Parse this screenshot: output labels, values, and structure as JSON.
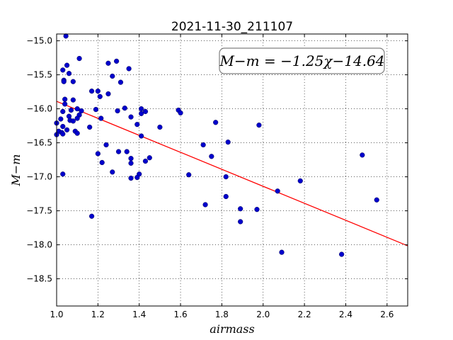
{
  "chart_data": {
    "type": "scatter",
    "title": "2021-11-30_211107",
    "xlabel": "airmass",
    "ylabel": "M−m",
    "xlim": [
      1.0,
      2.7
    ],
    "ylim": [
      -18.9,
      -14.9
    ],
    "y_inverted": true,
    "grid": true,
    "xticks": [
      "1.0",
      "1.2",
      "1.4",
      "1.6",
      "1.8",
      "2.0",
      "2.2",
      "2.4",
      "2.6"
    ],
    "yticks": [
      "−15.0",
      "−15.5",
      "−16.0",
      "−16.5",
      "−17.0",
      "−17.5",
      "−18.0",
      "−18.5"
    ],
    "annotation": "M−m = −1.25χ−14.64",
    "fit": {
      "slope": -1.25,
      "intercept": -14.64,
      "color": "#ff0000"
    },
    "point_color": "#0000cc",
    "points": [
      [
        1.045,
        -14.93
      ],
      [
        1.11,
        -15.26
      ],
      [
        1.29,
        -15.3
      ],
      [
        1.25,
        -15.33
      ],
      [
        1.05,
        -15.36
      ],
      [
        1.35,
        -15.41
      ],
      [
        1.03,
        -15.43
      ],
      [
        1.06,
        -15.48
      ],
      [
        1.27,
        -15.52
      ],
      [
        1.035,
        -15.58
      ],
      [
        1.08,
        -15.6
      ],
      [
        1.31,
        -15.61
      ],
      [
        1.035,
        -15.6
      ],
      [
        1.17,
        -15.74
      ],
      [
        1.2,
        -15.74
      ],
      [
        1.25,
        -15.78
      ],
      [
        1.21,
        -15.82
      ],
      [
        1.04,
        -15.86
      ],
      [
        1.08,
        -15.87
      ],
      [
        1.04,
        -15.93
      ],
      [
        1.33,
        -15.99
      ],
      [
        1.19,
        -16.01
      ],
      [
        1.1,
        -16.0
      ],
      [
        1.41,
        -16.0
      ],
      [
        1.07,
        -16.02
      ],
      [
        1.12,
        -16.03
      ],
      [
        1.03,
        -16.04
      ],
      [
        1.43,
        -16.04
      ],
      [
        1.295,
        -16.03
      ],
      [
        1.59,
        -16.02
      ],
      [
        1.6,
        -16.06
      ],
      [
        1.41,
        -16.07
      ],
      [
        1.11,
        -16.09
      ],
      [
        1.06,
        -16.11
      ],
      [
        1.36,
        -16.12
      ],
      [
        1.215,
        -16.14
      ],
      [
        1.1,
        -16.14
      ],
      [
        1.02,
        -16.15
      ],
      [
        1.065,
        -16.17
      ],
      [
        1.08,
        -16.18
      ],
      [
        1.0,
        -16.21
      ],
      [
        1.39,
        -16.23
      ],
      [
        1.77,
        -16.2
      ],
      [
        1.98,
        -16.24
      ],
      [
        1.03,
        -16.26
      ],
      [
        1.5,
        -16.27
      ],
      [
        1.16,
        -16.27
      ],
      [
        1.05,
        -16.31
      ],
      [
        1.01,
        -16.33
      ],
      [
        1.025,
        -16.35
      ],
      [
        1.09,
        -16.33
      ],
      [
        1.1,
        -16.36
      ],
      [
        1.03,
        -16.37
      ],
      [
        1.0,
        -16.38
      ],
      [
        1.41,
        -16.4
      ],
      [
        1.83,
        -16.49
      ],
      [
        1.24,
        -16.53
      ],
      [
        1.71,
        -16.53
      ],
      [
        1.2,
        -16.66
      ],
      [
        1.34,
        -16.63
      ],
      [
        1.3,
        -16.63
      ],
      [
        2.48,
        -16.68
      ],
      [
        1.75,
        -16.7
      ],
      [
        1.45,
        -16.72
      ],
      [
        1.36,
        -16.73
      ],
      [
        1.43,
        -16.77
      ],
      [
        1.22,
        -16.79
      ],
      [
        1.36,
        -16.8
      ],
      [
        1.27,
        -16.93
      ],
      [
        1.03,
        -16.96
      ],
      [
        1.4,
        -16.96
      ],
      [
        1.64,
        -16.97
      ],
      [
        1.82,
        -17.0
      ],
      [
        1.39,
        -17.01
      ],
      [
        1.36,
        -17.02
      ],
      [
        2.18,
        -17.06
      ],
      [
        2.07,
        -17.21
      ],
      [
        1.82,
        -17.29
      ],
      [
        2.55,
        -17.34
      ],
      [
        1.72,
        -17.41
      ],
      [
        1.89,
        -17.47
      ],
      [
        1.97,
        -17.48
      ],
      [
        1.17,
        -17.58
      ],
      [
        1.89,
        -17.66
      ],
      [
        2.09,
        -18.11
      ],
      [
        2.38,
        -18.14
      ]
    ]
  }
}
